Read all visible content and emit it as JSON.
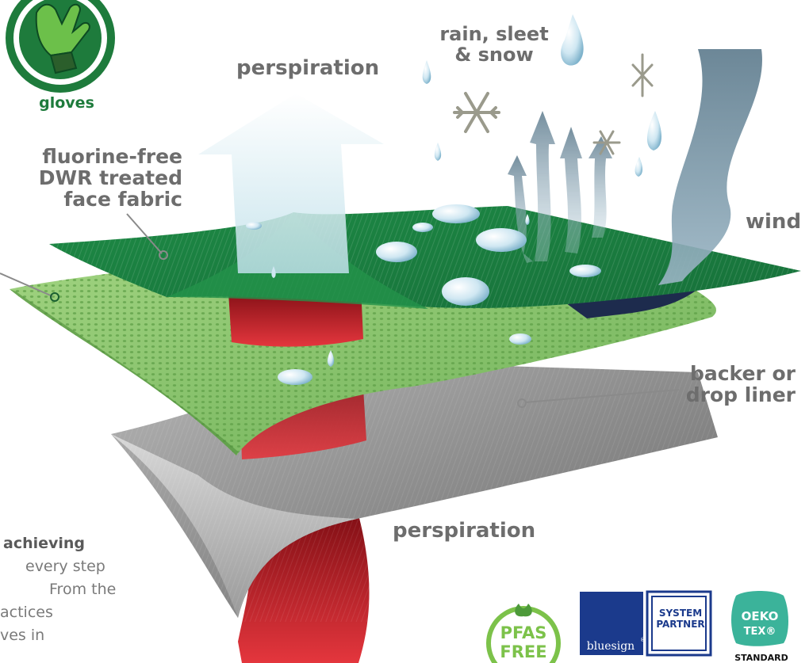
{
  "labels": {
    "dwr_line1": "fluorine-free",
    "dwr_line2": "DWR treated",
    "dwr_line3": "face fabric",
    "rain_line1": "rain, sleet",
    "rain_line2": "& snow",
    "perspiration_top": "perspiration",
    "wind": "wind",
    "backer_line1": "backer or",
    "backer_line2": "drop liner",
    "perspiration_bottom": "perspiration",
    "gloves": "gloves"
  },
  "body_text": {
    "line1": "achieving",
    "line2": "every step",
    "line3": "From the",
    "line4": "actices",
    "line5": "ves in"
  },
  "logos": {
    "pfas_line1": "PFAS",
    "pfas_line2": "FREE",
    "bluesign_word": "bluesign",
    "bluesign_reg": "®",
    "system_line1": "SYSTEM",
    "system_line2": "PARTNER",
    "oeko_line1": "OEKO",
    "oeko_line2": "TEX®",
    "oeko_standard": "STANDARD"
  },
  "colors": {
    "brand_green": "#1e7b3c",
    "face_fabric": "#1f8a44",
    "membrane": "#86c46a",
    "liner": "#8a8a8a",
    "label_gray": "#6d6d6d",
    "bluesign_blue": "#1b3a8c",
    "perspiration_red": "#c0242b"
  },
  "icons": [
    "gloves-icon",
    "snowflake-icon",
    "water-drop-icon",
    "leaf-icon"
  ]
}
